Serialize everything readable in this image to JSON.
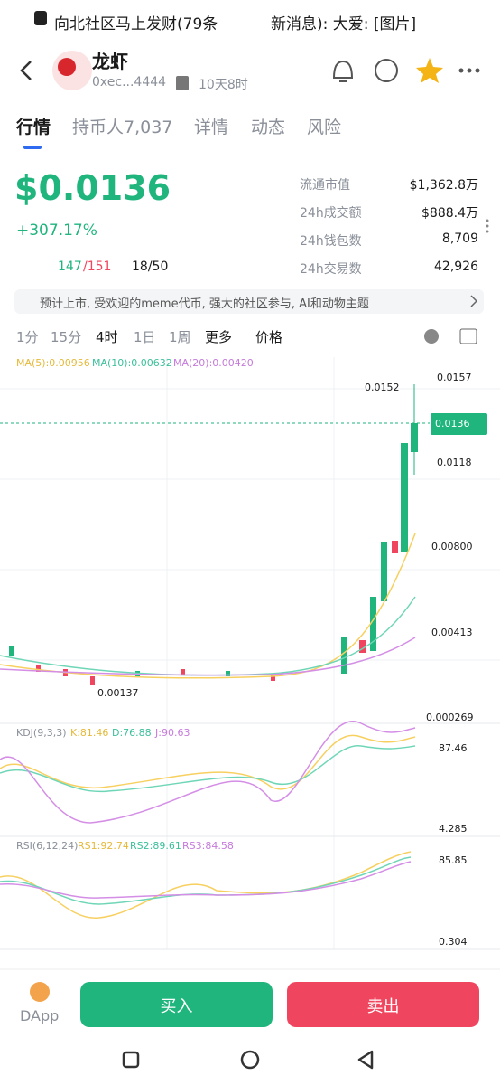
{
  "status": {
    "notification": "向北社区马上发财(79条",
    "notification_tail": "新消息): 大爱: [图片]"
  },
  "token": {
    "name": "龙虾",
    "address": "0xec...4444",
    "age": "10天8时"
  },
  "tabs": [
    "行情",
    "持币人7,037",
    "详情",
    "动态",
    "风险"
  ],
  "price": {
    "value": "$0.0136",
    "change": "+307.17%"
  },
  "stats": [
    {
      "label": "流通市值",
      "value": "$1,362.8万"
    },
    {
      "label": "24h成交额",
      "value": "$888.4万"
    },
    {
      "label": "24h钱包数",
      "value": "8,709"
    },
    {
      "label": "24h交易数",
      "value": "42,926"
    }
  ],
  "badges": {
    "holders": "147",
    "holders_total": "/151",
    "rank": "18/50"
  },
  "banner": "预计上市, 受欢迎的meme代币, 强大的社区参与, AI和动物主题",
  "intervals": [
    "1分",
    "15分",
    "4时",
    "1日",
    "1周",
    "更多",
    "价格"
  ],
  "ma": [
    "MA(5):0.00956",
    "MA(10):0.00632",
    "MA(20):0.00420"
  ],
  "price_axis": [
    "0.0157",
    "0.0136",
    "0.0118",
    "0.00800",
    "0.00413",
    "0.000269"
  ],
  "high_label": "0.0152",
  "low_label": "0.00137",
  "kdj": {
    "title": "KDJ(9,3,3)",
    "k": "K:81.46",
    "d": "D:76.88",
    "j": "J:90.63",
    "max": "87.46",
    "min": "4.285"
  },
  "rsi": {
    "title": "RSI(6,12,24)",
    "rs1": "RS1:92.74",
    "rs2": "RS2:89.61",
    "rs3": "RS3:84.58",
    "max": "85.85",
    "min": "0.304"
  },
  "bottom": {
    "dapp": "DApp",
    "buy": "买入",
    "sell": "卖出"
  }
}
